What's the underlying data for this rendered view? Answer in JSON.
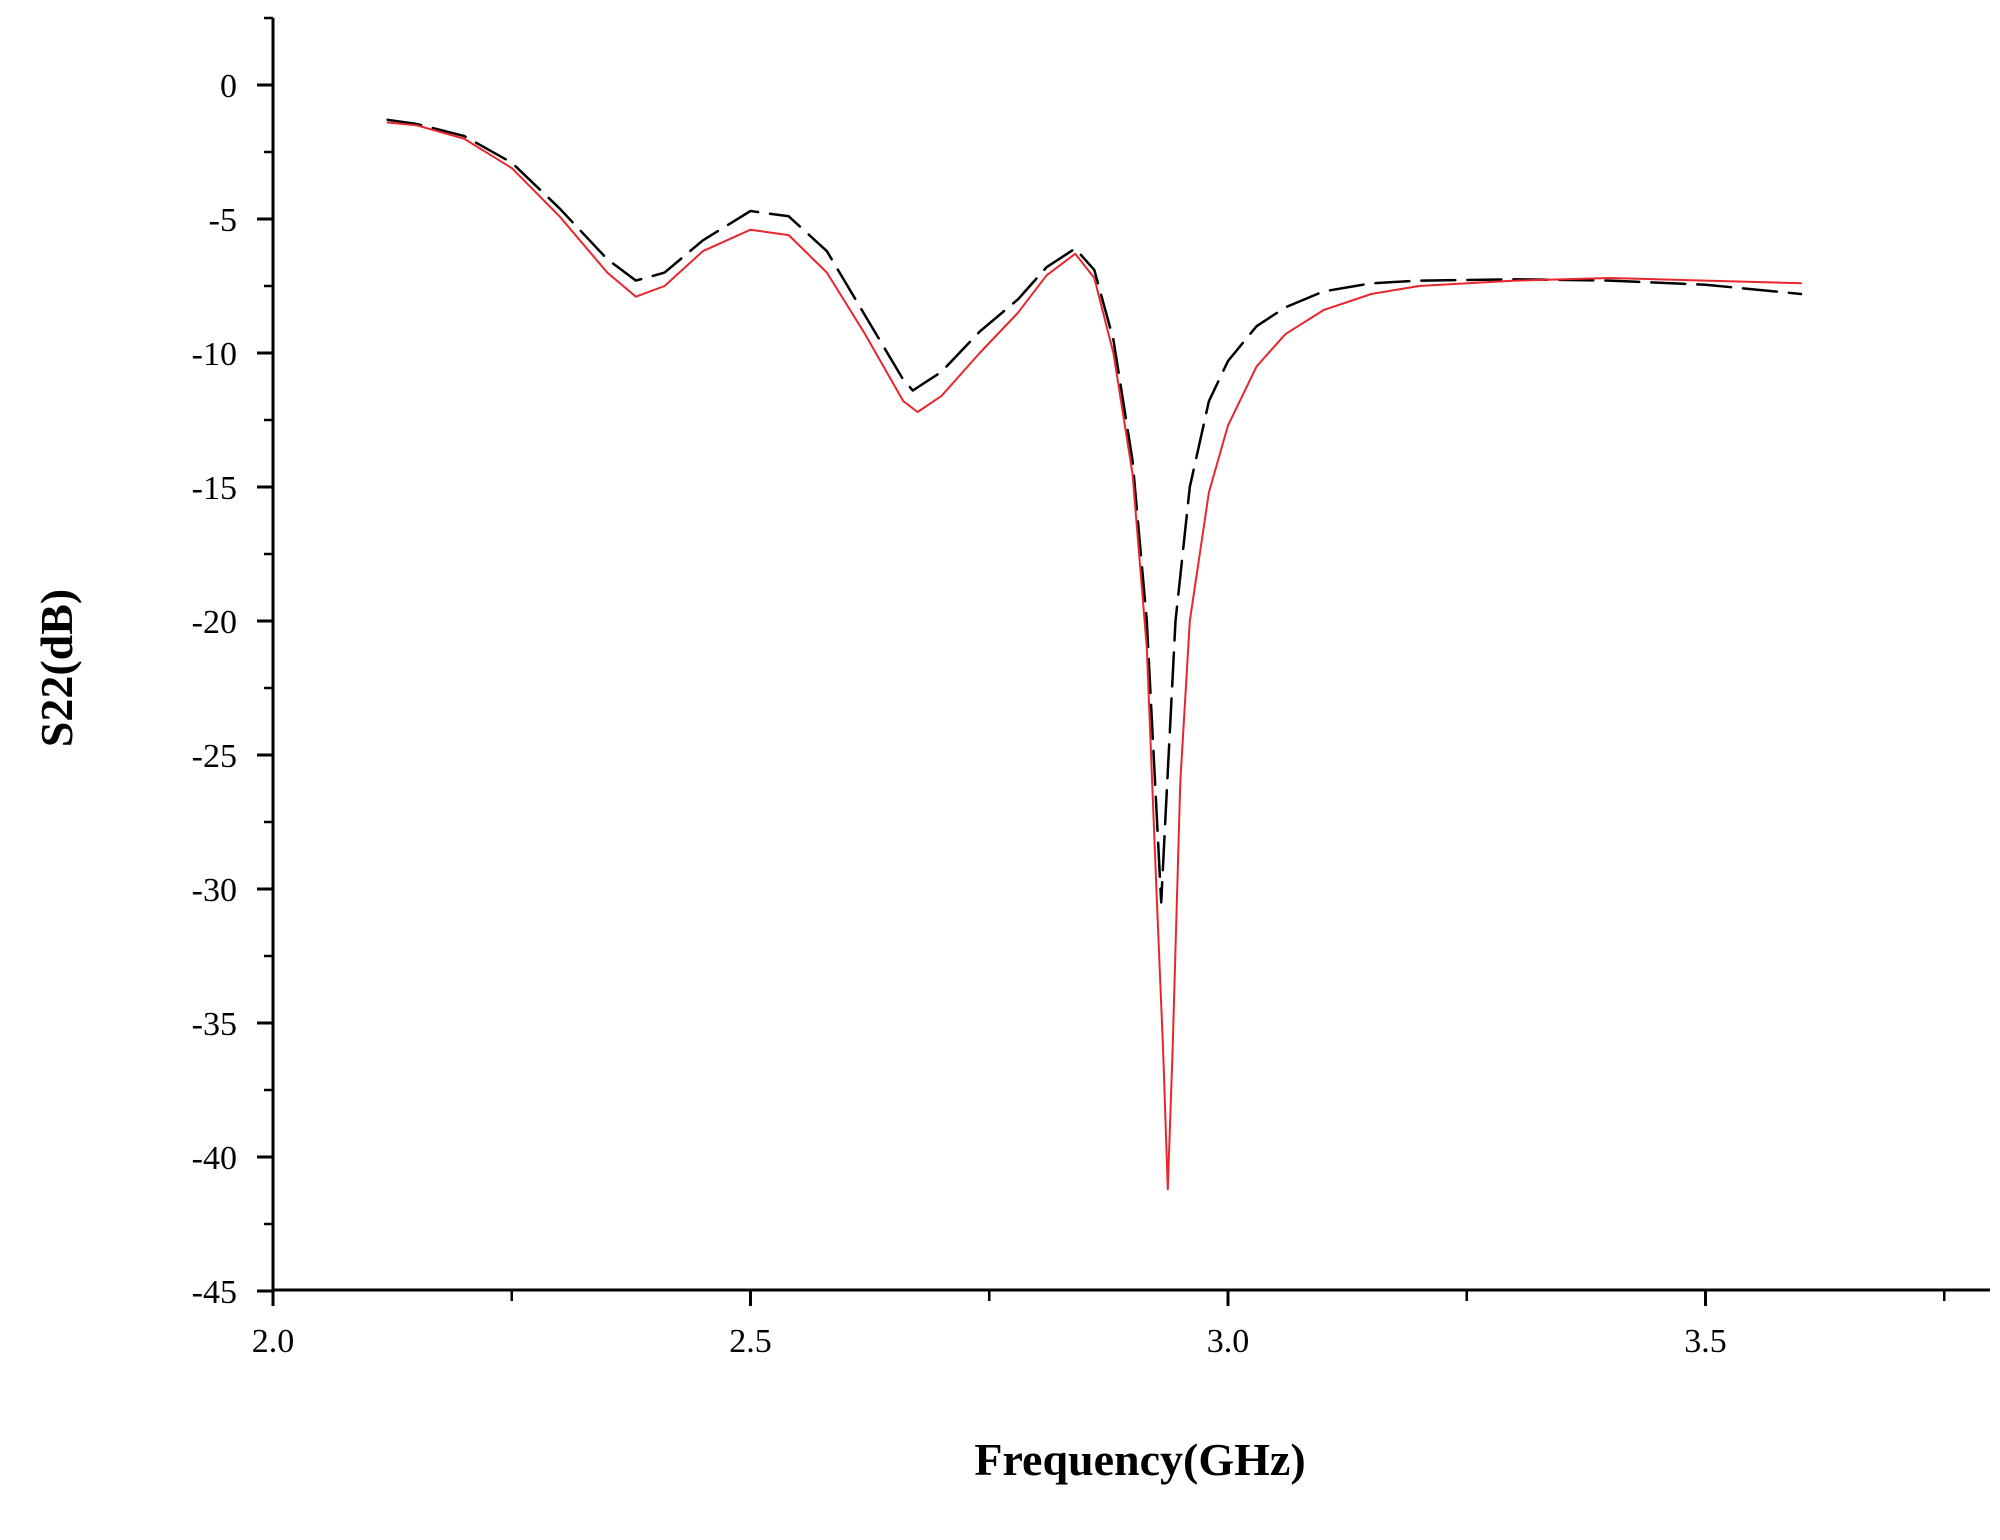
{
  "chart_data": {
    "type": "line",
    "title": "",
    "xlabel": "Frequency(GHz)",
    "ylabel": "S22(dB)",
    "xlim": [
      2.0,
      3.8
    ],
    "ylim": [
      -45,
      2.5
    ],
    "x_ticks": [
      2.0,
      2.5,
      3.0,
      3.5
    ],
    "x_tick_labels": [
      "2.0",
      "2.5",
      "3.0",
      "3.5"
    ],
    "x_minor_ticks": [
      2.25,
      2.75,
      3.25,
      3.75
    ],
    "y_ticks": [
      0,
      -5,
      -10,
      -15,
      -20,
      -25,
      -30,
      -35,
      -40,
      -45
    ],
    "y_tick_labels": [
      "0",
      "-5",
      "-10",
      "-15",
      "-20",
      "-25",
      "-30",
      "-35",
      "-40",
      "-45"
    ],
    "grid": false,
    "legend": "none",
    "series": [
      {
        "style": "dashed",
        "color": "#000000",
        "points": [
          [
            2.12,
            -1.3
          ],
          [
            2.15,
            -1.45
          ],
          [
            2.2,
            -1.9
          ],
          [
            2.25,
            -2.9
          ],
          [
            2.3,
            -4.6
          ],
          [
            2.35,
            -6.5
          ],
          [
            2.38,
            -7.3
          ],
          [
            2.41,
            -7.0
          ],
          [
            2.45,
            -5.8
          ],
          [
            2.5,
            -4.7
          ],
          [
            2.54,
            -4.9
          ],
          [
            2.58,
            -6.2
          ],
          [
            2.62,
            -8.6
          ],
          [
            2.66,
            -11.0
          ],
          [
            2.67,
            -11.4
          ],
          [
            2.7,
            -10.7
          ],
          [
            2.74,
            -9.2
          ],
          [
            2.78,
            -8.0
          ],
          [
            2.81,
            -6.8
          ],
          [
            2.84,
            -6.1
          ],
          [
            2.86,
            -6.9
          ],
          [
            2.88,
            -9.5
          ],
          [
            2.9,
            -14.0
          ],
          [
            2.915,
            -20.0
          ],
          [
            2.925,
            -27.0
          ],
          [
            2.93,
            -30.5
          ],
          [
            2.935,
            -27.0
          ],
          [
            2.945,
            -20.0
          ],
          [
            2.96,
            -15.0
          ],
          [
            2.98,
            -11.8
          ],
          [
            3.0,
            -10.3
          ],
          [
            3.03,
            -9.0
          ],
          [
            3.06,
            -8.3
          ],
          [
            3.1,
            -7.7
          ],
          [
            3.15,
            -7.4
          ],
          [
            3.2,
            -7.3
          ],
          [
            3.3,
            -7.25
          ],
          [
            3.4,
            -7.3
          ],
          [
            3.5,
            -7.45
          ],
          [
            3.6,
            -7.8
          ]
        ]
      },
      {
        "style": "solid",
        "color": "#e8262d",
        "points": [
          [
            2.12,
            -1.4
          ],
          [
            2.15,
            -1.5
          ],
          [
            2.2,
            -2.0
          ],
          [
            2.25,
            -3.1
          ],
          [
            2.3,
            -4.9
          ],
          [
            2.35,
            -7.0
          ],
          [
            2.38,
            -7.9
          ],
          [
            2.41,
            -7.5
          ],
          [
            2.45,
            -6.2
          ],
          [
            2.5,
            -5.4
          ],
          [
            2.54,
            -5.6
          ],
          [
            2.58,
            -7.0
          ],
          [
            2.62,
            -9.3
          ],
          [
            2.66,
            -11.8
          ],
          [
            2.675,
            -12.2
          ],
          [
            2.7,
            -11.6
          ],
          [
            2.74,
            -10.0
          ],
          [
            2.78,
            -8.5
          ],
          [
            2.81,
            -7.1
          ],
          [
            2.84,
            -6.3
          ],
          [
            2.86,
            -7.2
          ],
          [
            2.88,
            -10.0
          ],
          [
            2.9,
            -14.5
          ],
          [
            2.915,
            -21.0
          ],
          [
            2.925,
            -30.0
          ],
          [
            2.932,
            -36.0
          ],
          [
            2.937,
            -41.2
          ],
          [
            2.942,
            -36.0
          ],
          [
            2.95,
            -26.0
          ],
          [
            2.96,
            -20.0
          ],
          [
            2.98,
            -15.2
          ],
          [
            3.0,
            -12.7
          ],
          [
            3.03,
            -10.5
          ],
          [
            3.06,
            -9.3
          ],
          [
            3.1,
            -8.4
          ],
          [
            3.15,
            -7.8
          ],
          [
            3.2,
            -7.5
          ],
          [
            3.3,
            -7.3
          ],
          [
            3.4,
            -7.2
          ],
          [
            3.5,
            -7.3
          ],
          [
            3.6,
            -7.4
          ]
        ]
      }
    ]
  }
}
